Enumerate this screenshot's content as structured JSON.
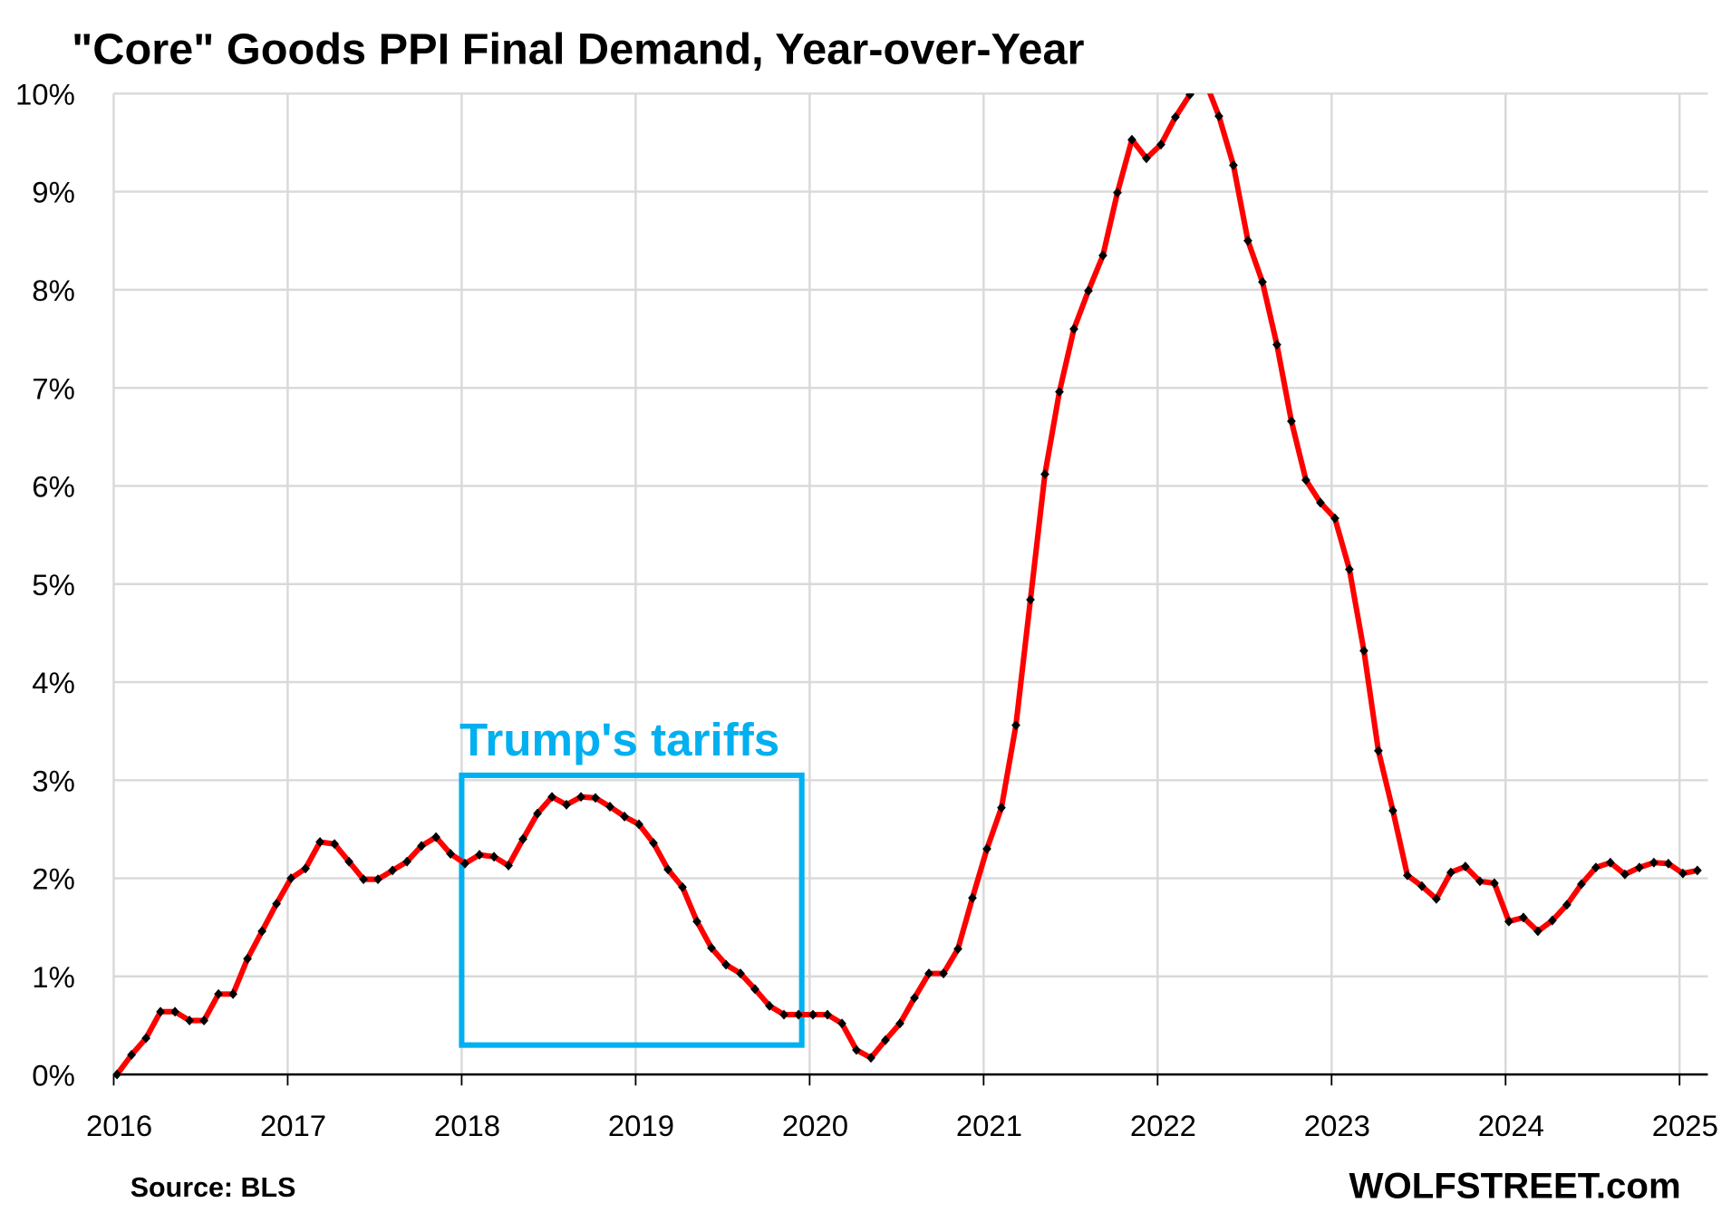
{
  "chart_data": {
    "type": "line",
    "title": "\"Core\" Goods PPI Final Demand, Year-over-Year",
    "xlabel": "",
    "ylabel": "",
    "source": "Source: BLS",
    "brand": "WOLFSTREET.com",
    "ylim": [
      0,
      10
    ],
    "xlim": [
      "2016-01",
      "2025-03"
    ],
    "grid": true,
    "y_ticks": [
      "0%",
      "1%",
      "2%",
      "3%",
      "4%",
      "5%",
      "6%",
      "7%",
      "8%",
      "9%",
      "10%"
    ],
    "x_ticks": [
      "2016",
      "2017",
      "2018",
      "2019",
      "2020",
      "2021",
      "2022",
      "2023",
      "2024",
      "2025"
    ],
    "start": "2016-01",
    "frequency": "monthly",
    "series": [
      {
        "name": "Core Goods PPI Final Demand YoY %",
        "color": "#ff0000",
        "marker_color": "#000000",
        "values": [
          0.0,
          0.2,
          0.37,
          0.64,
          0.64,
          0.55,
          0.55,
          0.82,
          0.82,
          1.18,
          1.46,
          1.74,
          2.0,
          2.1,
          2.37,
          2.35,
          2.17,
          1.99,
          1.99,
          2.08,
          2.17,
          2.33,
          2.42,
          2.25,
          2.15,
          2.24,
          2.22,
          2.13,
          2.4,
          2.66,
          2.83,
          2.75,
          2.83,
          2.82,
          2.73,
          2.63,
          2.55,
          2.36,
          2.09,
          1.91,
          1.56,
          1.29,
          1.12,
          1.03,
          0.87,
          0.7,
          0.61,
          0.61,
          0.61,
          0.61,
          0.52,
          0.25,
          0.17,
          0.35,
          0.52,
          0.78,
          1.03,
          1.03,
          1.28,
          1.8,
          2.3,
          2.72,
          3.56,
          4.84,
          6.12,
          6.96,
          7.6,
          7.99,
          8.35,
          8.99,
          9.53,
          9.34,
          9.48,
          9.76,
          9.99,
          10.15,
          9.77,
          9.27,
          8.5,
          8.08,
          7.44,
          6.66,
          6.06,
          5.83,
          5.67,
          5.15,
          4.32,
          3.3,
          2.69,
          2.03,
          1.92,
          1.79,
          2.06,
          2.12,
          1.97,
          1.95,
          1.56,
          1.6,
          1.46,
          1.57,
          1.73,
          1.94,
          2.11,
          2.16,
          2.04,
          2.11,
          2.16,
          2.15,
          2.05,
          2.08
        ]
      }
    ],
    "annotations": [
      {
        "text": "Trump's tariffs",
        "color": "#00b0f0",
        "box": {
          "x_from": "2018-01",
          "x_to": "2019-12",
          "y_from": 0.3,
          "y_to": 3.05
        }
      }
    ]
  }
}
